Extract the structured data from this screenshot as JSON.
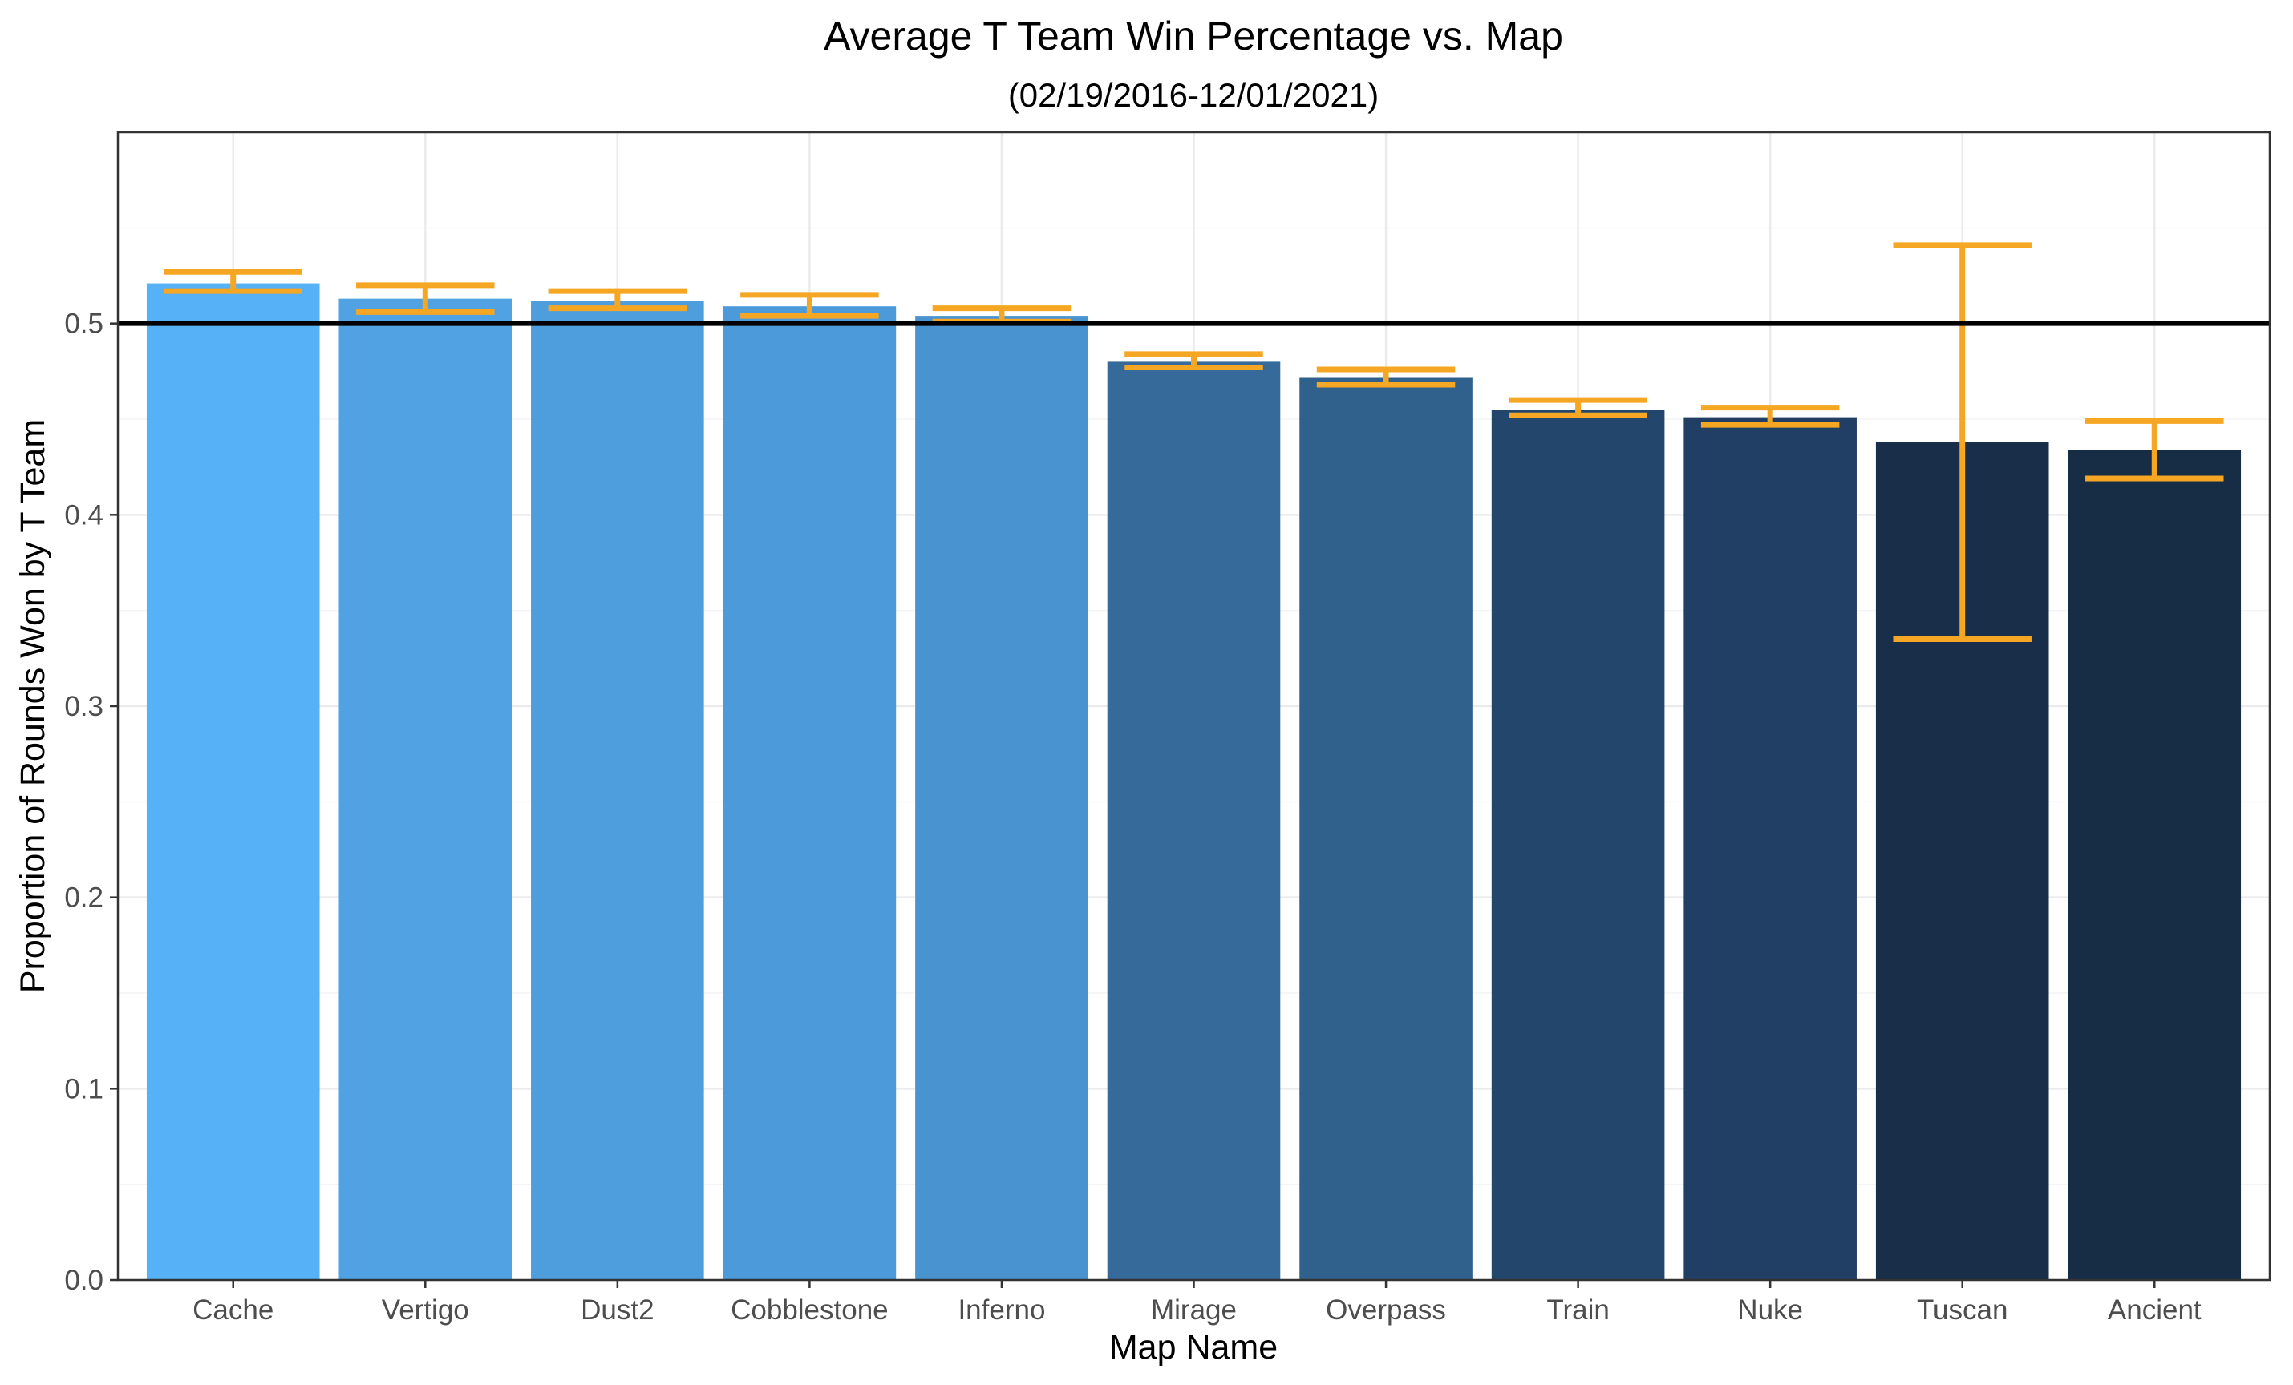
{
  "chart_data": {
    "type": "bar",
    "title": "Average T Team Win Percentage vs. Map",
    "subtitle": "(02/19/2016-12/01/2021)",
    "xlabel": "Map Name",
    "ylabel": "Proportion of Rounds Won by T Team",
    "categories": [
      "Cache",
      "Vertigo",
      "Dust2",
      "Cobblestone",
      "Inferno",
      "Mirage",
      "Overpass",
      "Train",
      "Nuke",
      "Tuscan",
      "Ancient"
    ],
    "values": [
      0.521,
      0.513,
      0.512,
      0.509,
      0.504,
      0.48,
      0.472,
      0.455,
      0.451,
      0.438,
      0.434
    ],
    "error_low": [
      0.517,
      0.506,
      0.508,
      0.504,
      0.501,
      0.477,
      0.468,
      0.452,
      0.447,
      0.335,
      0.419
    ],
    "error_high": [
      0.527,
      0.52,
      0.517,
      0.515,
      0.508,
      0.484,
      0.476,
      0.46,
      0.456,
      0.541,
      0.449
    ],
    "bar_colors": [
      "#56B1F7",
      "#50A2E2",
      "#4E9EDE",
      "#4C9AD9",
      "#4993D0",
      "#366A9A",
      "#30618C",
      "#23476C",
      "#213F64",
      "#182E49",
      "#172C45"
    ],
    "error_bar_color": "#F5A623",
    "reference_line": {
      "y": 0.5,
      "color": "#000000"
    },
    "yticks": [
      0.0,
      0.1,
      0.2,
      0.3,
      0.4,
      0.5
    ],
    "ytick_labels": [
      "0.0",
      "0.1",
      "0.2",
      "0.3",
      "0.4",
      "0.5"
    ],
    "ylim": [
      0,
      0.6
    ],
    "grid": true
  }
}
